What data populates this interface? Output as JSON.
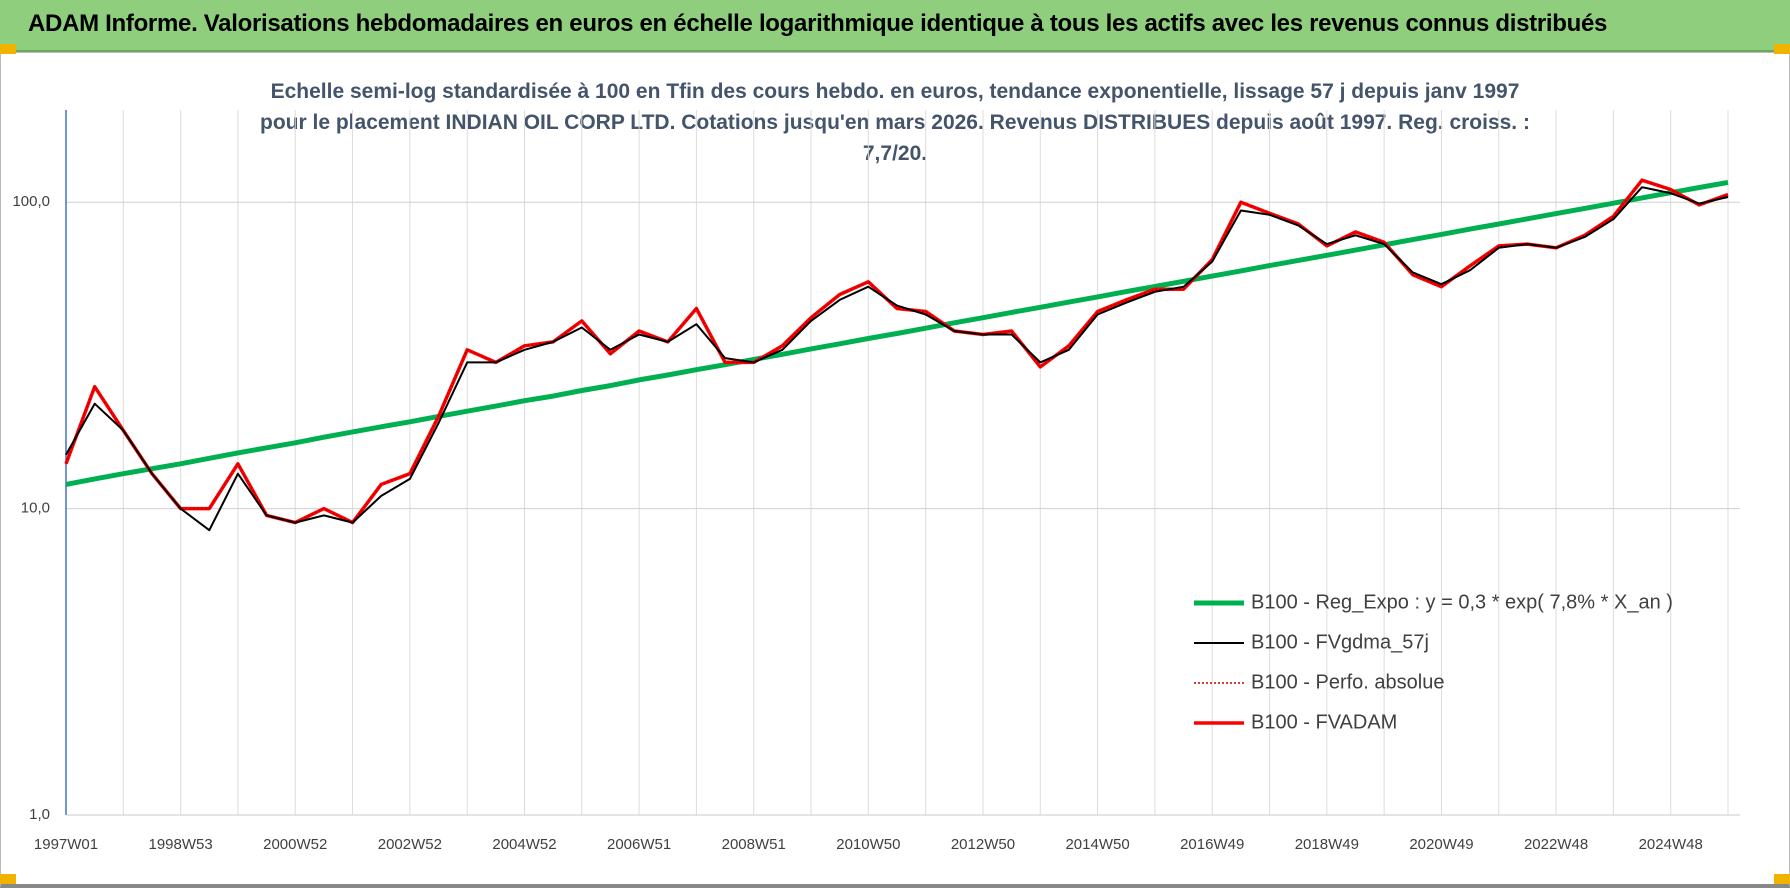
{
  "header": {
    "title": "ADAM Informe. Valorisations hebdomadaires en euros en échelle logarithmique identique à tous les actifs avec les revenus connus distribués"
  },
  "chart_data": {
    "type": "line",
    "subtitle": "Echelle semi-log standardisée à 100 en Tfin des cours hebdo. en euros, tendance exponentielle, lissage 57 j depuis janv 1997 pour le placement INDIAN OIL CORP LTD. Cotations jusqu'en mars 2026. Revenus DISTRIBUES depuis août 1997. Reg. croiss. : 7,7/20.",
    "categories": [
      "1997W01",
      null,
      null,
      null,
      "1998W53",
      null,
      null,
      null,
      "2000W52",
      null,
      null,
      null,
      "2002W52",
      null,
      null,
      null,
      "2004W52",
      null,
      null,
      null,
      "2006W51",
      null,
      null,
      null,
      "2008W51",
      null,
      null,
      null,
      "2010W50",
      null,
      null,
      null,
      "2012W50",
      null,
      null,
      null,
      "2014W50",
      null,
      null,
      null,
      "2016W49",
      null,
      null,
      null,
      "2018W49",
      null,
      null,
      null,
      "2020W49",
      null,
      null,
      null,
      "2022W48",
      null,
      null,
      null,
      "2024W48",
      null,
      null
    ],
    "series": [
      {
        "name": "B100 - Reg_Expo : y = 0,3 * exp( 7,8% *  X_an )",
        "color": "#00b050",
        "style": "solid",
        "values": [
          12.0,
          12.5,
          13.0,
          13.5,
          14.0,
          14.6,
          15.2,
          15.8,
          16.4,
          17.1,
          17.8,
          18.5,
          19.2,
          20.0,
          20.8,
          21.6,
          22.5,
          23.3,
          24.3,
          25.2,
          26.3,
          27.3,
          28.4,
          29.5,
          30.7,
          31.9,
          33.2,
          34.5,
          35.9,
          37.3,
          38.8,
          40.4,
          42.0,
          43.7,
          45.4,
          47.2,
          49.1,
          51.1,
          53.1,
          55.2,
          57.4,
          59.7,
          62.1,
          64.6,
          67.1,
          69.8,
          72.6,
          75.5,
          78.5,
          81.7,
          84.9,
          88.3,
          91.8,
          95.5,
          99.3,
          103.3,
          107.4,
          111.7,
          116.1
        ]
      },
      {
        "name": "B100 - FVgdma_57j",
        "color": "#000000",
        "style": "solid",
        "values": [
          15,
          22,
          18,
          13,
          10,
          8.5,
          13,
          9.5,
          9,
          9.5,
          9,
          11,
          12.5,
          19,
          30,
          30,
          33,
          35,
          39,
          33,
          37,
          35,
          40,
          31,
          30,
          33,
          41,
          48,
          53,
          46,
          43,
          38,
          37,
          37,
          30,
          33,
          43,
          47,
          51,
          53,
          64,
          94,
          91,
          84,
          73,
          78,
          73,
          59,
          54,
          60,
          71,
          73,
          71,
          77,
          88,
          112,
          107,
          99,
          104
        ]
      },
      {
        "name": "B100 - Perfo. absolue",
        "color": "#c00000",
        "style": "dotted",
        "values": [
          14,
          25,
          18,
          13,
          10,
          10,
          14,
          9.5,
          9,
          10,
          9,
          12,
          13,
          20,
          33,
          30,
          34,
          35,
          41,
          32,
          38,
          35,
          45,
          30,
          30,
          34,
          42,
          50,
          55,
          45,
          44,
          38,
          37,
          38,
          29,
          34,
          44,
          48,
          52,
          52,
          65,
          100,
          92,
          85,
          72,
          80,
          74,
          58,
          53,
          62,
          72,
          73,
          71,
          78,
          90,
          118,
          110,
          98,
          106
        ]
      },
      {
        "name": "B100 - FVADAM",
        "color": "#ff0000",
        "style": "solid",
        "values": [
          14,
          25,
          18,
          13,
          10,
          10,
          14,
          9.5,
          9,
          10,
          9,
          12,
          13,
          20,
          33,
          30,
          34,
          35,
          41,
          32,
          38,
          35,
          45,
          30,
          30,
          34,
          42,
          50,
          55,
          45,
          44,
          38,
          37,
          38,
          29,
          34,
          44,
          48,
          52,
          52,
          65,
          100,
          92,
          85,
          72,
          80,
          74,
          58,
          53,
          62,
          72,
          73,
          71,
          78,
          90,
          118,
          110,
          98,
          106
        ]
      }
    ],
    "ylim": [
      1,
      200
    ],
    "log_y": true,
    "yticks": [
      {
        "value": 1,
        "label": "1,0"
      },
      {
        "value": 10,
        "label": "10,0"
      },
      {
        "value": 100,
        "label": "100,0"
      }
    ],
    "grid": true,
    "legend": "lower right"
  }
}
